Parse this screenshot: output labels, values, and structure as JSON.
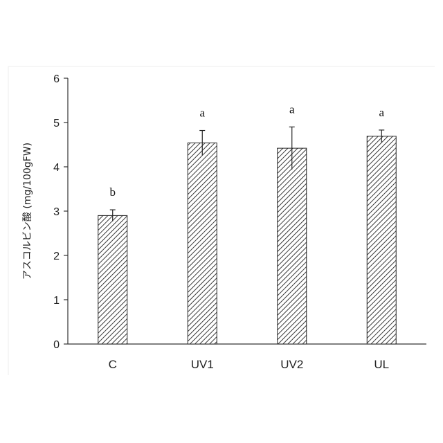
{
  "chart_data": {
    "type": "bar",
    "categories": [
      "C",
      "UV1",
      "UV2",
      "UL"
    ],
    "values": [
      2.9,
      4.54,
      4.42,
      4.69
    ],
    "errors": [
      0.13,
      0.28,
      0.48,
      0.14
    ],
    "significance": [
      "b",
      "a",
      "a",
      "a"
    ],
    "ylabel": "アスコルビン酸 (mg/100gFW)",
    "xlabel": "",
    "ylim": [
      0,
      6
    ],
    "yticks": [
      0,
      1,
      2,
      3,
      4,
      5,
      6
    ],
    "grid": false,
    "bar_pattern": "diagonal-hatch",
    "bar_color": "#222222"
  }
}
